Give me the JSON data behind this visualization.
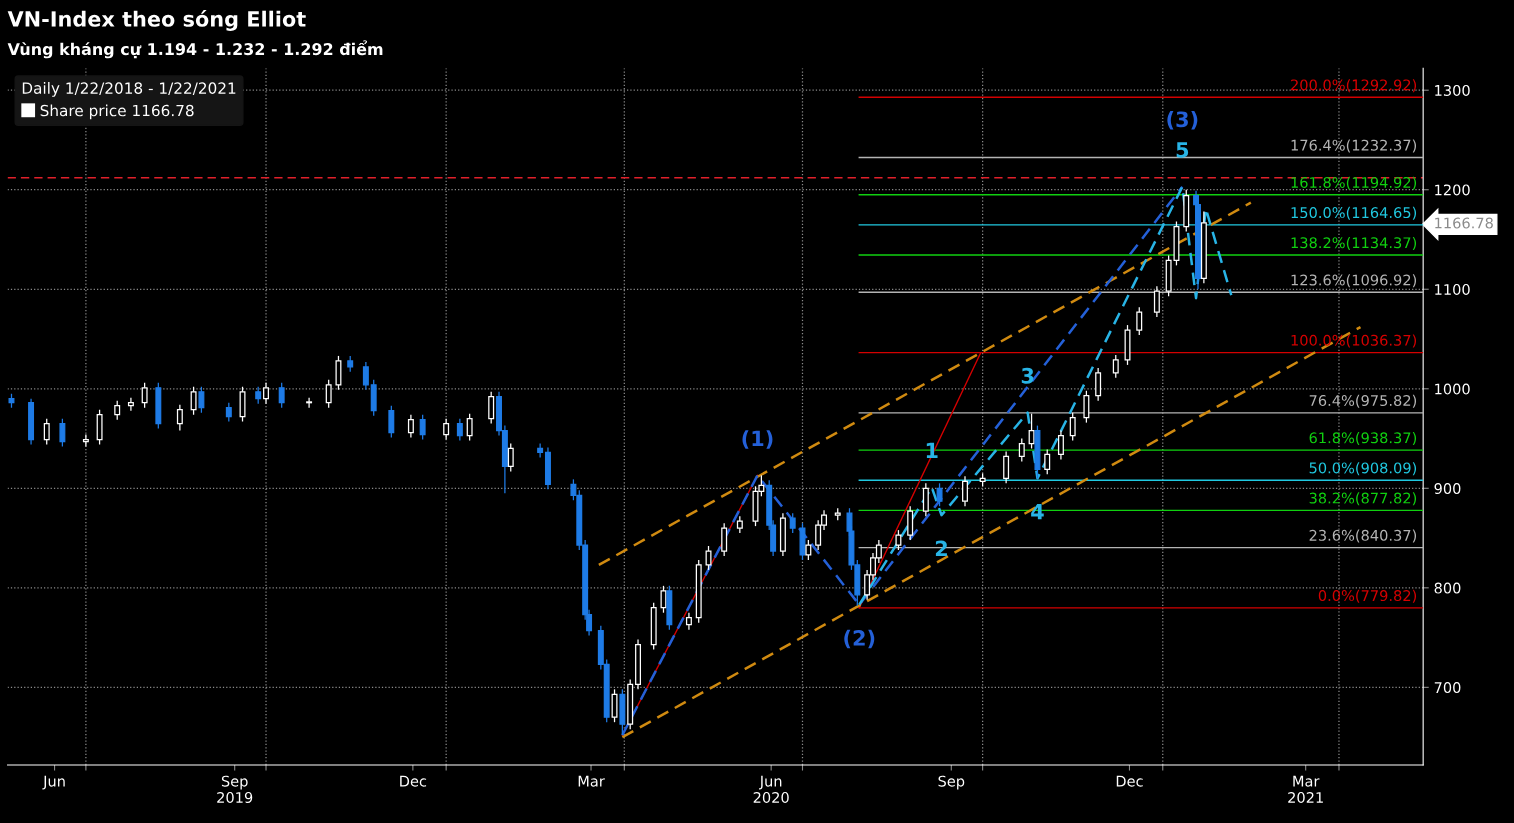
{
  "chart_data": {
    "type": "candlestick",
    "title": "VN-Index theo sóng Elliot",
    "subtitle": "Vùng kháng cự 1.194 - 1.232 - 1.292 điểm",
    "legend_title": "Daily 1/22/2018 - 1/22/2021",
    "annotations": [
      {
        "text": "(1)",
        "x": "2020-06-08",
        "y": 913
      },
      {
        "text": "(2)",
        "x": "2020-07-30",
        "y": 783
      },
      {
        "text": "1",
        "x": "2020-09-05",
        "y": 901
      },
      {
        "text": "2",
        "x": "2020-09-10",
        "y": 873
      },
      {
        "text": "3",
        "x": "2020-10-24",
        "y": 976
      },
      {
        "text": "4",
        "x": "2020-10-29",
        "y": 910
      },
      {
        "text": "5",
        "x": "2021-01-11",
        "y": 1203
      },
      {
        "text": "(3)",
        "x": "2021-01-11",
        "y": 1203
      }
    ],
    "legend": "top left",
    "grid": true,
    "xlim": [
      "2019-05-22",
      "2021-05-14"
    ],
    "xticks": [
      {
        "value": "2019-06-15",
        "label": "Jun"
      },
      {
        "value": "2019-09-15",
        "label": "Sep\n2019"
      },
      {
        "value": "2019-12-15",
        "label": "Dec"
      },
      {
        "value": "2020-03-15",
        "label": "Mar"
      },
      {
        "value": "2020-06-15",
        "label": "Jun\n2020"
      },
      {
        "value": "2020-09-15",
        "label": "Sep"
      },
      {
        "value": "2020-12-15",
        "label": "Dec"
      },
      {
        "value": "2021-03-15",
        "label": "Mar\n2021"
      },
      {
        "value": "2019-07-01",
        "label": null
      },
      {
        "value": "2019-10-01",
        "label": null
      },
      {
        "value": "2020-01-01",
        "label": null
      },
      {
        "value": "2020-04-01",
        "label": null
      },
      {
        "value": "2020-07-01",
        "label": null
      },
      {
        "value": "2020-10-01",
        "label": null
      },
      {
        "value": "2021-01-01",
        "label": null
      },
      {
        "value": "2021-04-01",
        "label": null
      }
    ],
    "ylim": [
      622,
      1322
    ],
    "yticks": [
      700,
      800,
      900,
      1000,
      1100,
      1200,
      1300,
      {
        "value": 1166.78,
        "label": "1166.78"
      }
    ],
    "ref_lines": [
      {
        "axis": "y",
        "value": 1212,
        "color": "#e0202a",
        "line_style": "dashed"
      }
    ],
    "series": [
      {
        "type": "line",
        "name": "200.0%(1292.92)",
        "color": "#d40000",
        "x": [
          "2020-07-30",
          "2021-05-14"
        ],
        "values": [
          1292.92,
          1292.92
        ]
      },
      {
        "type": "line",
        "name": "176.4%(1232.37)",
        "color": "#b4b4b4",
        "x": [
          "2020-07-30",
          "2021-05-14"
        ],
        "values": [
          1232.37,
          1232.37
        ]
      },
      {
        "type": "line",
        "name": "161.8%(1194.92)",
        "color": "#10d010",
        "x": [
          "2020-07-30",
          "2021-05-14"
        ],
        "values": [
          1194.92,
          1194.92
        ]
      },
      {
        "type": "line",
        "name": "150.0%(1164.65)",
        "color": "#20c8e0",
        "x": [
          "2020-07-30",
          "2021-05-14"
        ],
        "values": [
          1164.65,
          1164.65
        ]
      },
      {
        "type": "line",
        "name": "138.2%(1134.37)",
        "color": "#10d010",
        "x": [
          "2020-07-30",
          "2021-05-14"
        ],
        "values": [
          1134.37,
          1134.37
        ]
      },
      {
        "type": "line",
        "name": "123.6%(1096.92)",
        "color": "#b4b4b4",
        "x": [
          "2020-07-30",
          "2021-05-14"
        ],
        "values": [
          1096.92,
          1096.92
        ]
      },
      {
        "type": "line",
        "name": "100.0%(1036.37)",
        "color": "#d40000",
        "x": [
          "2020-07-30",
          "2021-05-14"
        ],
        "values": [
          1036.37,
          1036.37
        ]
      },
      {
        "type": "line",
        "name": "76.4%(975.82)",
        "color": "#b4b4b4",
        "x": [
          "2020-07-30",
          "2021-05-14"
        ],
        "values": [
          975.82,
          975.82
        ]
      },
      {
        "type": "line",
        "name": "61.8%(938.37)",
        "color": "#10d010",
        "x": [
          "2020-07-30",
          "2021-05-14"
        ],
        "values": [
          938.37,
          938.37
        ]
      },
      {
        "type": "line",
        "name": "50.0%(908.09)",
        "color": "#20c8e0",
        "x": [
          "2020-07-30",
          "2021-05-14"
        ],
        "values": [
          908.09,
          908.09
        ]
      },
      {
        "type": "line",
        "name": "38.2%(877.82)",
        "color": "#10d010",
        "x": [
          "2020-07-30",
          "2021-05-14"
        ],
        "values": [
          877.82,
          877.82
        ]
      },
      {
        "type": "line",
        "name": "23.6%(840.37)",
        "color": "#b4b4b4",
        "x": [
          "2020-07-30",
          "2021-05-14"
        ],
        "values": [
          840.37,
          840.37
        ]
      },
      {
        "type": "line",
        "name": "0.0%(779.82)",
        "color": "#d40000",
        "x": [
          "2020-07-30",
          "2021-05-14"
        ],
        "values": [
          779.82,
          779.82
        ]
      },
      {
        "type": "line",
        "color": "#d40000",
        "line_style": "solid",
        "x": [
          "2020-03-31",
          "2020-06-08"
        ],
        "values": [
          652,
          913
        ]
      },
      {
        "type": "line",
        "color": "#d40000",
        "line_style": "solid",
        "x": [
          "2020-07-30",
          "2020-09-30"
        ],
        "values": [
          780,
          1036
        ]
      },
      {
        "type": "line",
        "color": "#d08a10",
        "line_style": "dashed",
        "x": [
          "2020-03-19",
          "2021-02-15"
        ],
        "values": [
          823,
          1187
        ]
      },
      {
        "type": "line",
        "color": "#d08a10",
        "line_style": "dashed",
        "x": [
          "2020-03-31",
          "2021-04-12"
        ],
        "values": [
          650,
          1062
        ]
      },
      {
        "type": "line",
        "color": "#2460d8",
        "line_style": "dashed",
        "x": [
          "2020-03-31",
          "2020-06-08",
          "2020-07-30",
          "2021-01-11"
        ],
        "values": [
          652,
          913,
          783,
          1203
        ]
      },
      {
        "type": "line",
        "color": "#28b4e6",
        "line_style": "dashed",
        "x": [
          "2020-07-30",
          "2020-09-05",
          "2020-09-10",
          "2020-10-24",
          "2020-10-29",
          "2021-01-11",
          "2021-01-18",
          "2021-01-23",
          "2021-02-05"
        ],
        "values": [
          783,
          901,
          873,
          976,
          910,
          1203,
          1091,
          1181,
          1094
        ]
      },
      {
        "name": "Share price 1166.78",
        "color": "#ffffff",
        "colors": [
          "#1e7be6",
          "#1e7be6",
          "#ffffff",
          "#1e7be6",
          "#ffffff",
          "#ffffff",
          "#ffffff",
          "#ffffff",
          "#ffffff",
          "#1e7be6",
          "#ffffff",
          "#ffffff",
          "#1e7be6",
          "#1e7be6",
          "#ffffff",
          "#1e7be6",
          "#ffffff",
          "#1e7be6",
          "#ffffff",
          "#ffffff",
          "#ffffff",
          "#1e7be6",
          "#1e7be6",
          "#1e7be6",
          "#1e7be6",
          "#ffffff",
          "#1e7be6",
          "#ffffff",
          "#1e7be6",
          "#ffffff",
          "#ffffff",
          "#1e7be6",
          "#1e7be6",
          "#ffffff",
          "#1e7be6",
          "#1e7be6",
          "#1e7be6",
          "#1e7be6",
          "#1e7be6",
          "#1e7be6",
          "#1e7be6",
          "#1e7be6",
          "#ffffff",
          "#1e7be6",
          "#ffffff",
          "#ffffff",
          "#ffffff",
          "#ffffff",
          "#1e7be6",
          "#ffffff",
          "#ffffff",
          "#ffffff",
          "#ffffff",
          "#ffffff",
          "#ffffff",
          "#ffffff",
          "#1e7be6",
          "#1e7be6",
          "#ffffff",
          "#1e7be6",
          "#1e7be6",
          "#ffffff",
          "#ffffff",
          "#ffffff",
          "#ffffff",
          "#1e7be6",
          "#1e7be6",
          "#1e7be6",
          "#ffffff",
          "#ffffff",
          "#ffffff",
          "#ffffff",
          "#ffffff",
          "#ffffff",
          "#1e7be6",
          "#ffffff",
          "#ffffff",
          "#ffffff",
          "#ffffff",
          "#ffffff",
          "#1e7be6",
          "#ffffff",
          "#ffffff",
          "#ffffff",
          "#ffffff",
          "#ffffff",
          "#ffffff",
          "#ffffff",
          "#ffffff",
          "#ffffff",
          "#ffffff",
          "#ffffff",
          "#ffffff",
          "#1e7be6",
          "#1e7be6",
          "#ffffff"
        ],
        "x": [
          "2019-05-24",
          "2019-06-03",
          "2019-06-11",
          "2019-06-19",
          "2019-07-01",
          "2019-07-08",
          "2019-07-17",
          "2019-07-24",
          "2019-07-31",
          "2019-08-07",
          "2019-08-18",
          "2019-08-25",
          "2019-08-29",
          "2019-09-12",
          "2019-09-19",
          "2019-09-27",
          "2019-10-01",
          "2019-10-09",
          "2019-10-23",
          "2019-11-02",
          "2019-11-07",
          "2019-11-13",
          "2019-11-21",
          "2019-11-25",
          "2019-12-04",
          "2019-12-14",
          "2019-12-20",
          "2020-01-01",
          "2020-01-08",
          "2020-01-13",
          "2020-01-24",
          "2020-01-28",
          "2020-01-31",
          "2020-02-03",
          "2020-02-18",
          "2020-02-22",
          "2020-03-06",
          "2020-03-09",
          "2020-03-12",
          "2020-03-14",
          "2020-03-20",
          "2020-03-23",
          "2020-03-27",
          "2020-03-31",
          "2020-04-04",
          "2020-04-08",
          "2020-04-16",
          "2020-04-21",
          "2020-04-24",
          "2020-05-04",
          "2020-05-09",
          "2020-05-14",
          "2020-05-22",
          "2020-05-30",
          "2020-06-07",
          "2020-06-10",
          "2020-06-14",
          "2020-06-16",
          "2020-06-21",
          "2020-06-26",
          "2020-07-01",
          "2020-07-04",
          "2020-07-09",
          "2020-07-12",
          "2020-07-19",
          "2020-07-25",
          "2020-07-26",
          "2020-07-29",
          "2020-08-03",
          "2020-08-06",
          "2020-08-09",
          "2020-08-19",
          "2020-08-25",
          "2020-09-02",
          "2020-09-09",
          "2020-09-22",
          "2020-10-01",
          "2020-10-13",
          "2020-10-21",
          "2020-10-26",
          "2020-10-29",
          "2020-11-03",
          "2020-11-10",
          "2020-11-16",
          "2020-11-23",
          "2020-11-29",
          "2020-12-08",
          "2020-12-14",
          "2020-12-20",
          "2020-12-29",
          "2021-01-04",
          "2021-01-08",
          "2021-01-13",
          "2021-01-18",
          "2021-01-19",
          "2021-01-22"
        ],
        "ohlc": [
          [
            990,
            995,
            981,
            986
          ],
          [
            986,
            990,
            944,
            949
          ],
          [
            949,
            970,
            944,
            965
          ],
          [
            965,
            970,
            942,
            947
          ],
          [
            947,
            954,
            942,
            949
          ],
          [
            949,
            979,
            944,
            974
          ],
          [
            974,
            988,
            969,
            983
          ],
          [
            983,
            991,
            978,
            986
          ],
          [
            986,
            1006,
            981,
            1001
          ],
          [
            1001,
            1006,
            960,
            965
          ],
          [
            965,
            984,
            958,
            979
          ],
          [
            979,
            1002,
            974,
            997
          ],
          [
            997,
            1002,
            976,
            981
          ],
          [
            981,
            986,
            967,
            972
          ],
          [
            972,
            1002,
            967,
            997
          ],
          [
            997,
            1002,
            985,
            990
          ],
          [
            990,
            1006,
            985,
            1001
          ],
          [
            1001,
            1006,
            981,
            986
          ],
          [
            986,
            991,
            981,
            986
          ],
          [
            986,
            1009,
            981,
            1004
          ],
          [
            1004,
            1033,
            999,
            1028
          ],
          [
            1028,
            1033,
            1017,
            1022
          ],
          [
            1022,
            1027,
            999,
            1004
          ],
          [
            1004,
            1009,
            973,
            978
          ],
          [
            978,
            983,
            951,
            956
          ],
          [
            956,
            974,
            951,
            969
          ],
          [
            969,
            974,
            949,
            954
          ],
          [
            954,
            970,
            949,
            965
          ],
          [
            965,
            970,
            948,
            953
          ],
          [
            953,
            975,
            948,
            970
          ],
          [
            970,
            997,
            965,
            992
          ],
          [
            992,
            997,
            953,
            958
          ],
          [
            958,
            963,
            895,
            922
          ],
          [
            922,
            945,
            917,
            940
          ],
          [
            940,
            945,
            931,
            936
          ],
          [
            936,
            941,
            899,
            904
          ],
          [
            904,
            909,
            888,
            893
          ],
          [
            893,
            898,
            838,
            843
          ],
          [
            843,
            848,
            768,
            773
          ],
          [
            773,
            778,
            752,
            757
          ],
          [
            757,
            762,
            718,
            723
          ],
          [
            723,
            728,
            665,
            670
          ],
          [
            670,
            698,
            665,
            693
          ],
          [
            693,
            698,
            652,
            663
          ],
          [
            663,
            708,
            658,
            703
          ],
          [
            703,
            748,
            698,
            743
          ],
          [
            743,
            785,
            738,
            780
          ],
          [
            780,
            802,
            775,
            797
          ],
          [
            797,
            802,
            758,
            763
          ],
          [
            763,
            775,
            758,
            770
          ],
          [
            770,
            828,
            765,
            823
          ],
          [
            823,
            842,
            818,
            837
          ],
          [
            837,
            865,
            832,
            860
          ],
          [
            860,
            872,
            855,
            867
          ],
          [
            867,
            902,
            862,
            897
          ],
          [
            897,
            913,
            892,
            903
          ],
          [
            903,
            908,
            858,
            863
          ],
          [
            863,
            868,
            832,
            837
          ],
          [
            837,
            875,
            832,
            870
          ],
          [
            870,
            875,
            855,
            860
          ],
          [
            860,
            865,
            828,
            833
          ],
          [
            833,
            848,
            828,
            843
          ],
          [
            843,
            868,
            838,
            863
          ],
          [
            863,
            878,
            858,
            873
          ],
          [
            873,
            880,
            868,
            875
          ],
          [
            875,
            880,
            852,
            857
          ],
          [
            857,
            862,
            818,
            823
          ],
          [
            823,
            828,
            782,
            793
          ],
          [
            793,
            818,
            788,
            813
          ],
          [
            813,
            835,
            808,
            830
          ],
          [
            830,
            848,
            825,
            843
          ],
          [
            843,
            858,
            838,
            853
          ],
          [
            853,
            882,
            848,
            877
          ],
          [
            877,
            905,
            872,
            900
          ],
          [
            900,
            905,
            882,
            887
          ],
          [
            887,
            912,
            882,
            907
          ],
          [
            907,
            915,
            902,
            910
          ],
          [
            910,
            937,
            905,
            932
          ],
          [
            932,
            950,
            927,
            945
          ],
          [
            945,
            975,
            940,
            958
          ],
          [
            958,
            963,
            910,
            919
          ],
          [
            919,
            939,
            914,
            934
          ],
          [
            934,
            958,
            929,
            953
          ],
          [
            953,
            976,
            948,
            971
          ],
          [
            971,
            998,
            966,
            993
          ],
          [
            993,
            1021,
            988,
            1016
          ],
          [
            1016,
            1034,
            1011,
            1029
          ],
          [
            1029,
            1064,
            1024,
            1059
          ],
          [
            1059,
            1082,
            1054,
            1077
          ],
          [
            1077,
            1103,
            1072,
            1098
          ],
          [
            1098,
            1134,
            1093,
            1129
          ],
          [
            1129,
            1168,
            1124,
            1163
          ],
          [
            1163,
            1200,
            1158,
            1194
          ],
          [
            1194,
            1199,
            1180,
            1185
          ],
          [
            1185,
            1190,
            1100,
            1111
          ],
          [
            1111,
            1178,
            1106,
            1166.78
          ]
        ]
      }
    ]
  }
}
